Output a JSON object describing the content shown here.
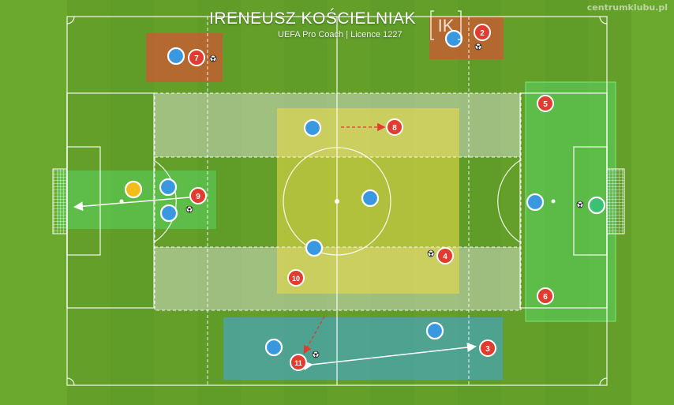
{
  "header": {
    "coach_name": "IRENEUSZ KOŚCIELNIAK",
    "coach_subtitle": "UEFA Pro Coach   |   Licence 1227",
    "watermark": "centrumklubu.pl",
    "logo_text": "IK"
  },
  "colors": {
    "grass_light": "#6aa82e",
    "grass_dark": "#5a9826",
    "line": "#ffffff",
    "team_red": "#e23b30",
    "team_blue": "#3a98e0",
    "goalkeeper_home": "#f2bd1a",
    "goalkeeper_away": "#3bc173",
    "zone_orange": "#c25f31",
    "zone_yellow": "#e6d94a",
    "zone_green": "#5ad660",
    "zone_blue": "#41a7d6",
    "zone_white": "#e9e9e9"
  },
  "players": {
    "red": [
      {
        "number": "2"
      },
      {
        "number": "3"
      },
      {
        "number": "4"
      },
      {
        "number": "5"
      },
      {
        "number": "6"
      },
      {
        "number": "7"
      },
      {
        "number": "8"
      },
      {
        "number": "9"
      },
      {
        "number": "10"
      },
      {
        "number": "11"
      }
    ]
  }
}
